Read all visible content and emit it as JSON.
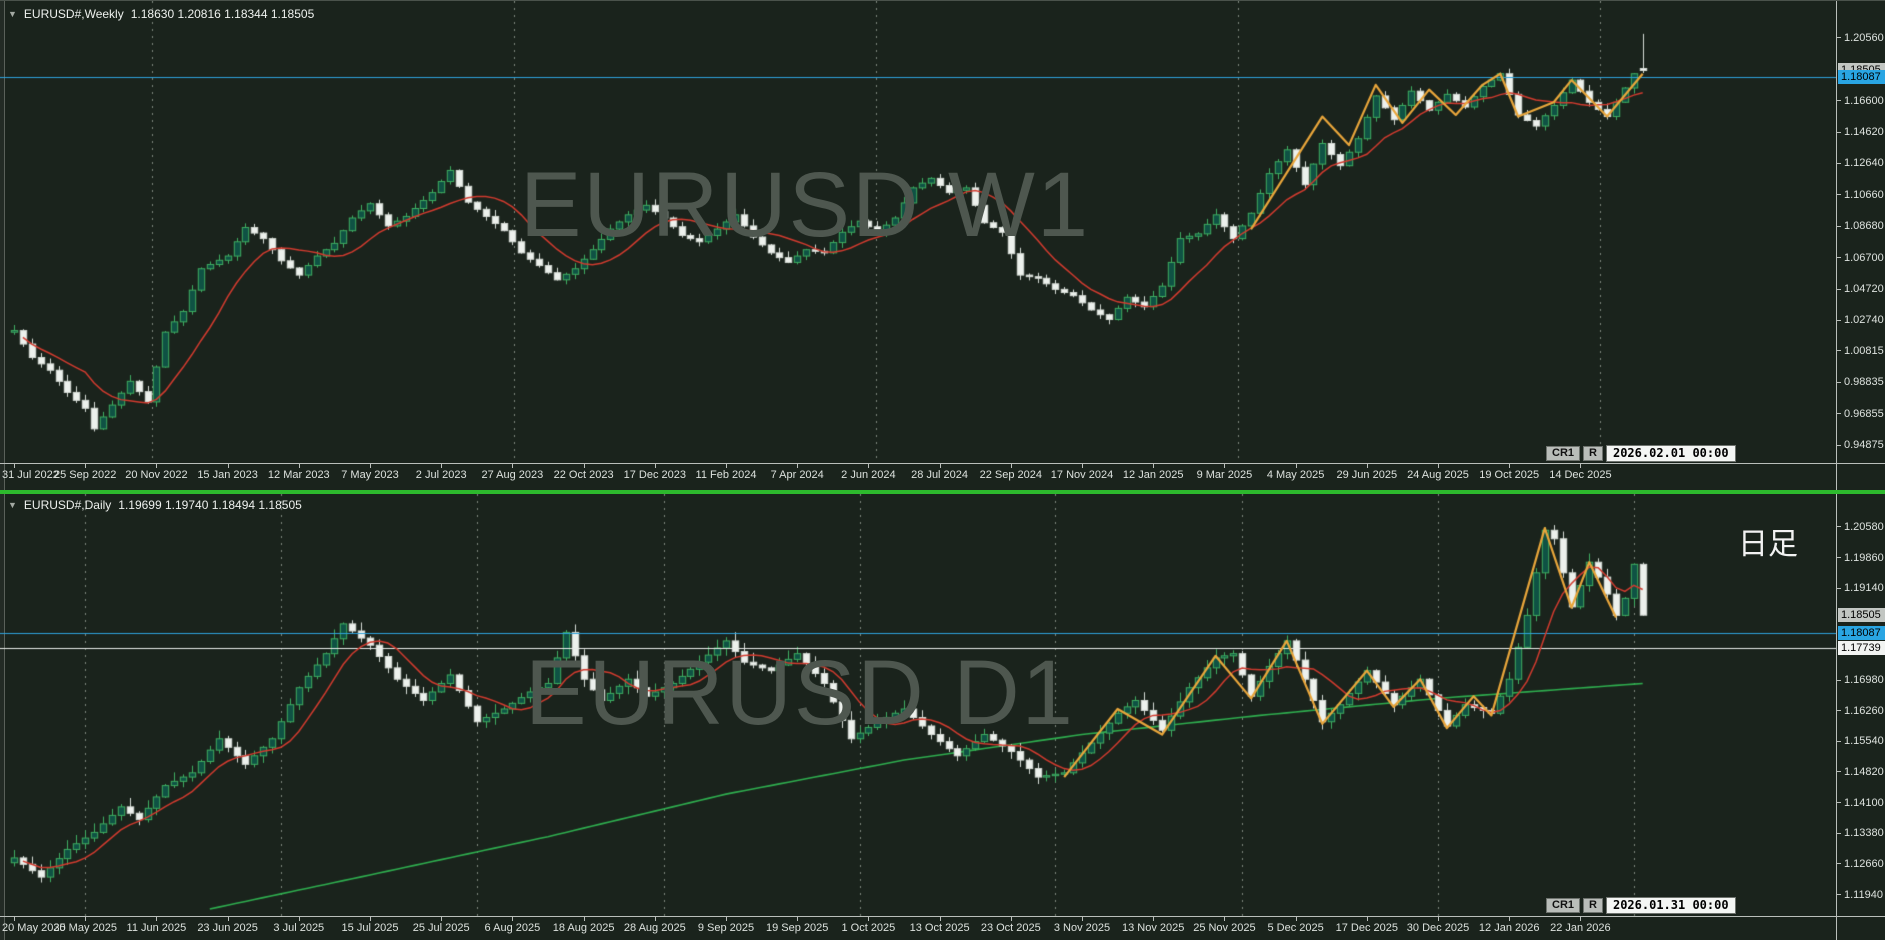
{
  "colors": {
    "bg": "#1a231c",
    "bull_fill": "#0f5244",
    "bull_line": "#3fae62",
    "bear_fill": "#edf1ed",
    "bear_line": "#d6dcd6",
    "ma_red": "#d23b2f",
    "ma_slow": "#2fae4f",
    "zigzag": "#e9a63b",
    "level_blue": "#2ea3dc",
    "level_white": "#e8ece8",
    "grid": "#7f887f",
    "axis_line": "#b9beba",
    "text": "#dde2de",
    "watermark": "#4e574f",
    "separator": "#2db92d",
    "box_current_bg": "#c2c6c2",
    "box_blue_bg": "#29a5e3",
    "box_white_bg": "#f2f4f2"
  },
  "top_chart": {
    "symbol": "EURUSD#,Weekly",
    "ohlc": "1.18630 1.20816 1.18344 1.18505",
    "watermark": "EURUSD W1",
    "toolbar": {
      "cr1": "CR1",
      "r": "R",
      "datetime": "2026.02.01 00:00"
    },
    "price_ticks": [
      "1.20560",
      "1.16600",
      "1.14620",
      "1.12640",
      "1.10660",
      "1.08680",
      "1.06700",
      "1.04720",
      "1.02740",
      "1.00815",
      "0.98835",
      "0.96855",
      "0.94875"
    ],
    "price_boxes": [
      {
        "text": "1.18505",
        "type": "current"
      },
      {
        "text": "1.18087",
        "type": "blue"
      }
    ],
    "date_labels": [
      "31 Jul 2022",
      "25 Sep 2022",
      "20 Nov 2022",
      "15 Jan 2023",
      "12 Mar 2023",
      "7 May 2023",
      "2 Jul 2023",
      "27 Aug 2023",
      "22 Oct 2023",
      "17 Dec 2023",
      "11 Feb 2024",
      "7 Apr 2024",
      "2 Jun 2024",
      "28 Jul 2024",
      "22 Sep 2024",
      "17 Nov 2024",
      "12 Jan 2025",
      "9 Mar 2025",
      "4 May 2025",
      "29 Jun 2025",
      "24 Aug 2025",
      "19 Oct 2025",
      "14 Dec 2025"
    ],
    "chart_data": {
      "type": "candlestick",
      "timeframe": "W1",
      "bars": 184,
      "y_range": [
        0.94,
        1.215
      ],
      "levels": [
        {
          "price": 1.18087,
          "color_key": "level_blue"
        }
      ],
      "ma_red_window": 9,
      "last_candle": {
        "open": 1.1863,
        "high": 1.20816,
        "low": 1.18344,
        "close": 1.18505
      },
      "close_anchors": [
        [
          0,
          1.021
        ],
        [
          2,
          1.004
        ],
        [
          4,
          0.996
        ],
        [
          6,
          0.982
        ],
        [
          8,
          0.972
        ],
        [
          9,
          0.959
        ],
        [
          11,
          0.974
        ],
        [
          13,
          0.989
        ],
        [
          15,
          0.976
        ],
        [
          17,
          1.02
        ],
        [
          19,
          1.033
        ],
        [
          21,
          1.06
        ],
        [
          24,
          1.068
        ],
        [
          26,
          1.086
        ],
        [
          28,
          1.079
        ],
        [
          30,
          1.065
        ],
        [
          32,
          1.056
        ],
        [
          34,
          1.068
        ],
        [
          36,
          1.076
        ],
        [
          38,
          1.092
        ],
        [
          40,
          1.101
        ],
        [
          42,
          1.087
        ],
        [
          44,
          1.093
        ],
        [
          47,
          1.108
        ],
        [
          49,
          1.122
        ],
        [
          51,
          1.102
        ],
        [
          53,
          1.093
        ],
        [
          55,
          1.084
        ],
        [
          57,
          1.07
        ],
        [
          59,
          1.062
        ],
        [
          61,
          1.053
        ],
        [
          63,
          1.06
        ],
        [
          65,
          1.072
        ],
        [
          67,
          1.085
        ],
        [
          69,
          1.094
        ],
        [
          71,
          1.1
        ],
        [
          73,
          1.092
        ],
        [
          75,
          1.081
        ],
        [
          77,
          1.077
        ],
        [
          79,
          1.085
        ],
        [
          81,
          1.094
        ],
        [
          83,
          1.08
        ],
        [
          85,
          1.07
        ],
        [
          87,
          1.064
        ],
        [
          89,
          1.072
        ],
        [
          91,
          1.07
        ],
        [
          93,
          1.083
        ],
        [
          95,
          1.09
        ],
        [
          97,
          1.083
        ],
        [
          99,
          1.092
        ],
        [
          101,
          1.111
        ],
        [
          103,
          1.117
        ],
        [
          105,
          1.108
        ],
        [
          107,
          1.111
        ],
        [
          109,
          1.089
        ],
        [
          111,
          1.083
        ],
        [
          113,
          1.056
        ],
        [
          115,
          1.054
        ],
        [
          117,
          1.047
        ],
        [
          119,
          1.043
        ],
        [
          121,
          1.034
        ],
        [
          123,
          1.028
        ],
        [
          125,
          1.042
        ],
        [
          127,
          1.036
        ],
        [
          129,
          1.049
        ],
        [
          131,
          1.079
        ],
        [
          133,
          1.082
        ],
        [
          135,
          1.094
        ],
        [
          137,
          1.079
        ],
        [
          139,
          1.095
        ],
        [
          141,
          1.12
        ],
        [
          143,
          1.135
        ],
        [
          145,
          1.113
        ],
        [
          147,
          1.139
        ],
        [
          149,
          1.125
        ],
        [
          151,
          1.142
        ],
        [
          153,
          1.169
        ],
        [
          155,
          1.154
        ],
        [
          157,
          1.172
        ],
        [
          159,
          1.16
        ],
        [
          161,
          1.17
        ],
        [
          163,
          1.162
        ],
        [
          165,
          1.175
        ],
        [
          167,
          1.183
        ],
        [
          169,
          1.157
        ],
        [
          171,
          1.15
        ],
        [
          173,
          1.163
        ],
        [
          175,
          1.179
        ],
        [
          177,
          1.165
        ],
        [
          179,
          1.156
        ],
        [
          180,
          1.165
        ],
        [
          181,
          1.174
        ],
        [
          182,
          1.183
        ],
        [
          183,
          1.1851
        ]
      ],
      "zigzag": [
        [
          139,
          1.085
        ],
        [
          147,
          1.156
        ],
        [
          150,
          1.138
        ],
        [
          153,
          1.176
        ],
        [
          156,
          1.152
        ],
        [
          159,
          1.173
        ],
        [
          162,
          1.157
        ],
        [
          165,
          1.176
        ],
        [
          167,
          1.183
        ],
        [
          169,
          1.156
        ],
        [
          173,
          1.165
        ],
        [
          175,
          1.179
        ],
        [
          179,
          1.156
        ],
        [
          183,
          1.183
        ]
      ]
    }
  },
  "bottom_chart": {
    "symbol": "EURUSD#,Daily",
    "ohlc": "1.19699 1.19740 1.18494 1.18505",
    "watermark": "EURUSD D1",
    "panel_label": "日足",
    "toolbar": {
      "cr1": "CR1",
      "r": "R",
      "datetime": "2026.01.31 00:00"
    },
    "price_ticks": [
      "1.20580",
      "1.19860",
      "1.19140",
      "1.16980",
      "1.16260",
      "1.15540",
      "1.14820",
      "1.14100",
      "1.13380",
      "1.12660",
      "1.11940"
    ],
    "price_boxes": [
      {
        "text": "1.18505",
        "type": "current"
      },
      {
        "text": "1.18087",
        "type": "blue"
      },
      {
        "text": "1.17739",
        "type": "white"
      }
    ],
    "date_labels": [
      "20 May 2025",
      "30 May 2025",
      "11 Jun 2025",
      "23 Jun 2025",
      "3 Jul 2025",
      "15 Jul 2025",
      "25 Jul 2025",
      "6 Aug 2025",
      "18 Aug 2025",
      "28 Aug 2025",
      "9 Sep 2025",
      "19 Sep 2025",
      "1 Oct 2025",
      "13 Oct 2025",
      "23 Oct 2025",
      "3 Nov 2025",
      "13 Nov 2025",
      "25 Nov 2025",
      "5 Dec 2025",
      "17 Dec 2025",
      "30 Dec 2025",
      "12 Jan 2026",
      "22 Jan 2026"
    ],
    "chart_data": {
      "type": "candlestick",
      "timeframe": "D1",
      "bars": 184,
      "y_range": [
        1.116,
        1.21
      ],
      "levels": [
        {
          "price": 1.18087,
          "color_key": "level_blue"
        },
        {
          "price": 1.17739,
          "color_key": "level_white"
        }
      ],
      "ma_red_window": 7,
      "ma_slow_anchors": [
        [
          22,
          1.116
        ],
        [
          40,
          1.124
        ],
        [
          60,
          1.133
        ],
        [
          80,
          1.143
        ],
        [
          100,
          1.151
        ],
        [
          120,
          1.157
        ],
        [
          140,
          1.1615
        ],
        [
          160,
          1.1655
        ],
        [
          183,
          1.169
        ]
      ],
      "last_candle": {
        "open": 1.19699,
        "high": 1.1974,
        "low": 1.18494,
        "close": 1.18505
      },
      "close_anchors": [
        [
          0,
          1.128
        ],
        [
          3,
          1.1235
        ],
        [
          6,
          1.13
        ],
        [
          9,
          1.134
        ],
        [
          12,
          1.14
        ],
        [
          14,
          1.137
        ],
        [
          17,
          1.145
        ],
        [
          20,
          1.148
        ],
        [
          23,
          1.156
        ],
        [
          26,
          1.15
        ],
        [
          29,
          1.156
        ],
        [
          32,
          1.168
        ],
        [
          35,
          1.176
        ],
        [
          37,
          1.183
        ],
        [
          40,
          1.178
        ],
        [
          43,
          1.17
        ],
        [
          46,
          1.165
        ],
        [
          49,
          1.171
        ],
        [
          52,
          1.16
        ],
        [
          55,
          1.163
        ],
        [
          58,
          1.167
        ],
        [
          60,
          1.169
        ],
        [
          62,
          1.181
        ],
        [
          64,
          1.17
        ],
        [
          66,
          1.165
        ],
        [
          69,
          1.17
        ],
        [
          71,
          1.166
        ],
        [
          74,
          1.169
        ],
        [
          77,
          1.174
        ],
        [
          80,
          1.179
        ],
        [
          82,
          1.174
        ],
        [
          85,
          1.172
        ],
        [
          88,
          1.176
        ],
        [
          91,
          1.169
        ],
        [
          94,
          1.156
        ],
        [
          97,
          1.16
        ],
        [
          100,
          1.163
        ],
        [
          103,
          1.157
        ],
        [
          106,
          1.152
        ],
        [
          109,
          1.157
        ],
        [
          112,
          1.153
        ],
        [
          115,
          1.147
        ],
        [
          118,
          1.148
        ],
        [
          121,
          1.155
        ],
        [
          124,
          1.162
        ],
        [
          126,
          1.165
        ],
        [
          129,
          1.158
        ],
        [
          132,
          1.168
        ],
        [
          135,
          1.175
        ],
        [
          137,
          1.176
        ],
        [
          139,
          1.166
        ],
        [
          141,
          1.173
        ],
        [
          143,
          1.179
        ],
        [
          145,
          1.17
        ],
        [
          147,
          1.16
        ],
        [
          149,
          1.164
        ],
        [
          152,
          1.172
        ],
        [
          155,
          1.164
        ],
        [
          158,
          1.17
        ],
        [
          161,
          1.159
        ],
        [
          163,
          1.164
        ],
        [
          166,
          1.162
        ],
        [
          168,
          1.17
        ],
        [
          170,
          1.185
        ],
        [
          171,
          1.195
        ],
        [
          172,
          1.205
        ],
        [
          173,
          1.203
        ],
        [
          174,
          1.195
        ],
        [
          175,
          1.187
        ],
        [
          176,
          1.192
        ],
        [
          177,
          1.1975
        ],
        [
          178,
          1.194
        ],
        [
          179,
          1.19
        ],
        [
          180,
          1.185
        ],
        [
          181,
          1.189
        ],
        [
          182,
          1.197
        ],
        [
          183,
          1.1851
        ]
      ],
      "zigzag": [
        [
          118,
          1.147
        ],
        [
          124,
          1.163
        ],
        [
          129,
          1.157
        ],
        [
          135,
          1.1755
        ],
        [
          139,
          1.1655
        ],
        [
          143,
          1.179
        ],
        [
          147,
          1.1595
        ],
        [
          152,
          1.172
        ],
        [
          155,
          1.1635
        ],
        [
          158,
          1.17
        ],
        [
          161,
          1.1585
        ],
        [
          164,
          1.166
        ],
        [
          166,
          1.1615
        ],
        [
          172,
          1.2055
        ],
        [
          175,
          1.1868
        ],
        [
          177,
          1.1975
        ],
        [
          180,
          1.1845
        ]
      ]
    }
  }
}
